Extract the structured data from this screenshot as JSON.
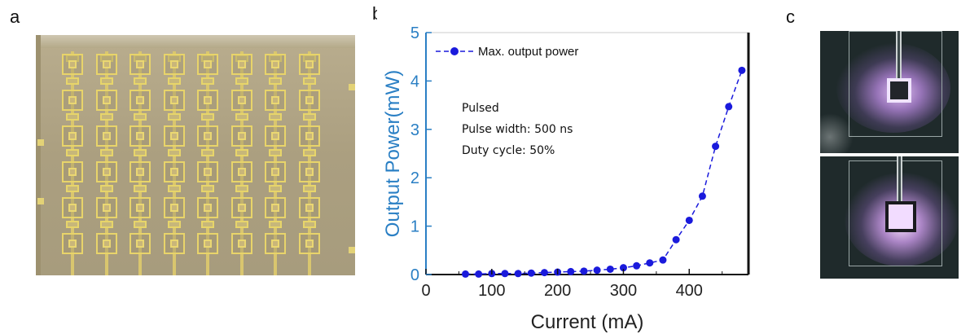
{
  "panels": {
    "a": {
      "label": "a"
    },
    "b": {
      "label": "b"
    },
    "c": {
      "label": "c"
    }
  },
  "chart_data": {
    "type": "line",
    "xlabel": "Current (mA)",
    "ylabel": "Output Power(mW)",
    "xlim": [
      0,
      490
    ],
    "ylim": [
      0,
      5
    ],
    "xticks": [
      0,
      100,
      200,
      300,
      400
    ],
    "yticks": [
      0,
      1,
      2,
      3,
      4,
      5
    ],
    "legend": {
      "placement": "top-left"
    },
    "series": [
      {
        "name": "Max. output power",
        "color": "#1a1adc",
        "x": [
          60,
          80,
          100,
          120,
          140,
          160,
          180,
          200,
          220,
          240,
          260,
          280,
          300,
          320,
          340,
          360,
          380,
          400,
          420,
          440,
          460,
          480
        ],
        "y": [
          0.01,
          0.01,
          0.02,
          0.02,
          0.02,
          0.03,
          0.04,
          0.05,
          0.06,
          0.07,
          0.09,
          0.11,
          0.14,
          0.18,
          0.24,
          0.3,
          0.72,
          1.12,
          1.62,
          2.65,
          3.47,
          4.22
        ]
      }
    ],
    "annotations": [
      "Pulsed",
      "Pulse width: 500 ns",
      "Duty cycle: 50%"
    ],
    "axis_color": "#2a7fc4",
    "frame_color": "#111111"
  }
}
